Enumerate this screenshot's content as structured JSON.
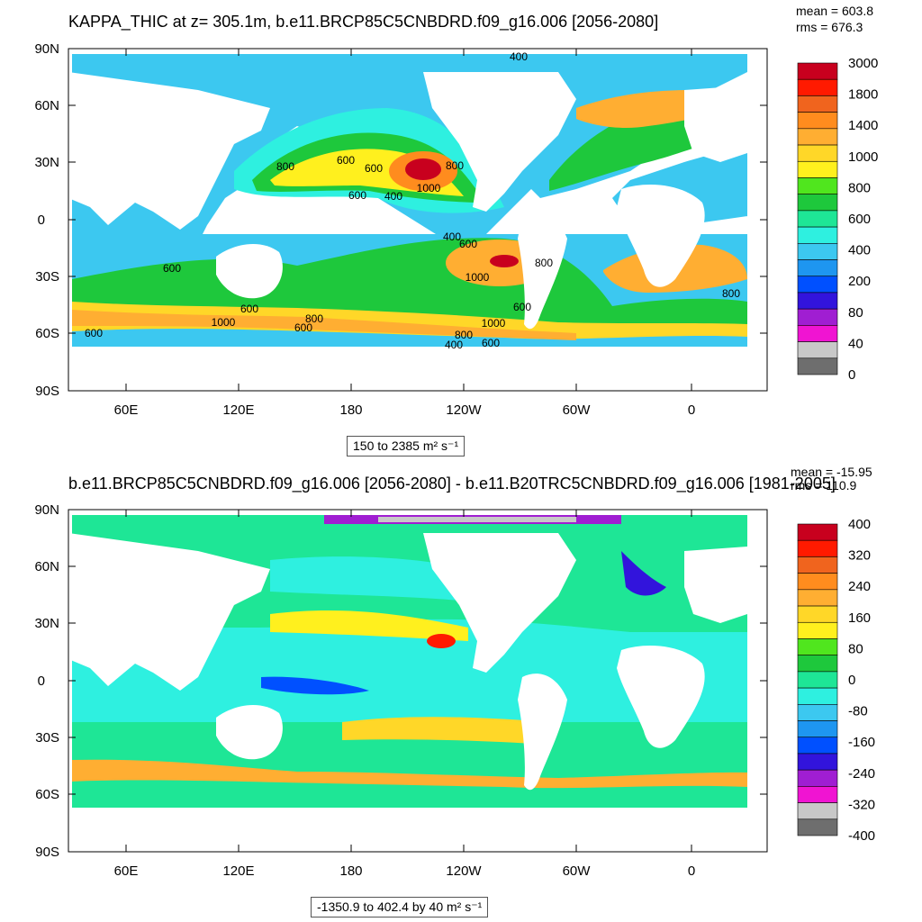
{
  "panels": [
    {
      "title": "KAPPA_THIC at z= 305.1m, b.e11.BRCP85C5CNBDRD.f09_g16.006 [2056-2080]",
      "mean": "mean = 603.8",
      "rms": "rms = 676.3",
      "range": "150 to 2385 m² s⁻¹",
      "lat_labels": [
        "90N",
        "60N",
        "30N",
        "0",
        "30S",
        "60S",
        "90S"
      ],
      "lon_labels": [
        "60E",
        "120E",
        "180",
        "120W",
        "60W",
        "0"
      ],
      "colorbar_labels": [
        "3000",
        "1800",
        "1400",
        "1000",
        "800",
        "600",
        "400",
        "200",
        "80",
        "40",
        "0"
      ],
      "colorbar_colors": [
        "#c8001e",
        "#ff1a00",
        "#f0641e",
        "#ff8c1e",
        "#ffae32",
        "#ffd728",
        "#fff01e",
        "#50e61e",
        "#1ec83c",
        "#1ee696",
        "#2ef0e0",
        "#3cc8f0",
        "#1e96f0",
        "#0050ff",
        "#3214dc",
        "#a01ed2",
        "#f014d2",
        "#c8c8c8",
        "#6e6e6e"
      ],
      "contour_labels": [
        "400",
        "800",
        "600",
        "600",
        "800",
        "1000",
        "600",
        "400",
        "400",
        "600",
        "600",
        "1000",
        "800",
        "600",
        "1000",
        "600",
        "800",
        "600",
        "1000",
        "800",
        "600",
        "400",
        "600",
        "800"
      ]
    },
    {
      "title": "b.e11.BRCP85C5CNBDRD.f09_g16.006 [2056-2080] - b.e11.B20TRC5CNBDRD.f09_g16.006 [1981-2005]",
      "mean": "mean = -15.95",
      "rms": "rms = 110.9",
      "range": "-1350.9 to 402.4 by 40 m² s⁻¹",
      "lat_labels": [
        "90N",
        "60N",
        "30N",
        "0",
        "30S",
        "60S",
        "90S"
      ],
      "lon_labels": [
        "60E",
        "120E",
        "180",
        "120W",
        "60W",
        "0"
      ],
      "colorbar_labels": [
        "400",
        "320",
        "240",
        "160",
        "80",
        "0",
        "-80",
        "-160",
        "-240",
        "-320",
        "-400"
      ],
      "colorbar_colors": [
        "#c8001e",
        "#ff1a00",
        "#f0641e",
        "#ff8c1e",
        "#ffae32",
        "#ffd728",
        "#fff01e",
        "#50e61e",
        "#1ec83c",
        "#1ee696",
        "#2ef0e0",
        "#3cc8f0",
        "#1e96f0",
        "#0050ff",
        "#3214dc",
        "#a01ed2",
        "#f014d2",
        "#c8c8c8",
        "#6e6e6e"
      ]
    }
  ],
  "colors": {
    "ocean_base_top": "#3cc8f0",
    "ocean_base_bottom": "#2ef0e0",
    "land": "#ffffff",
    "frame": "#000000"
  }
}
